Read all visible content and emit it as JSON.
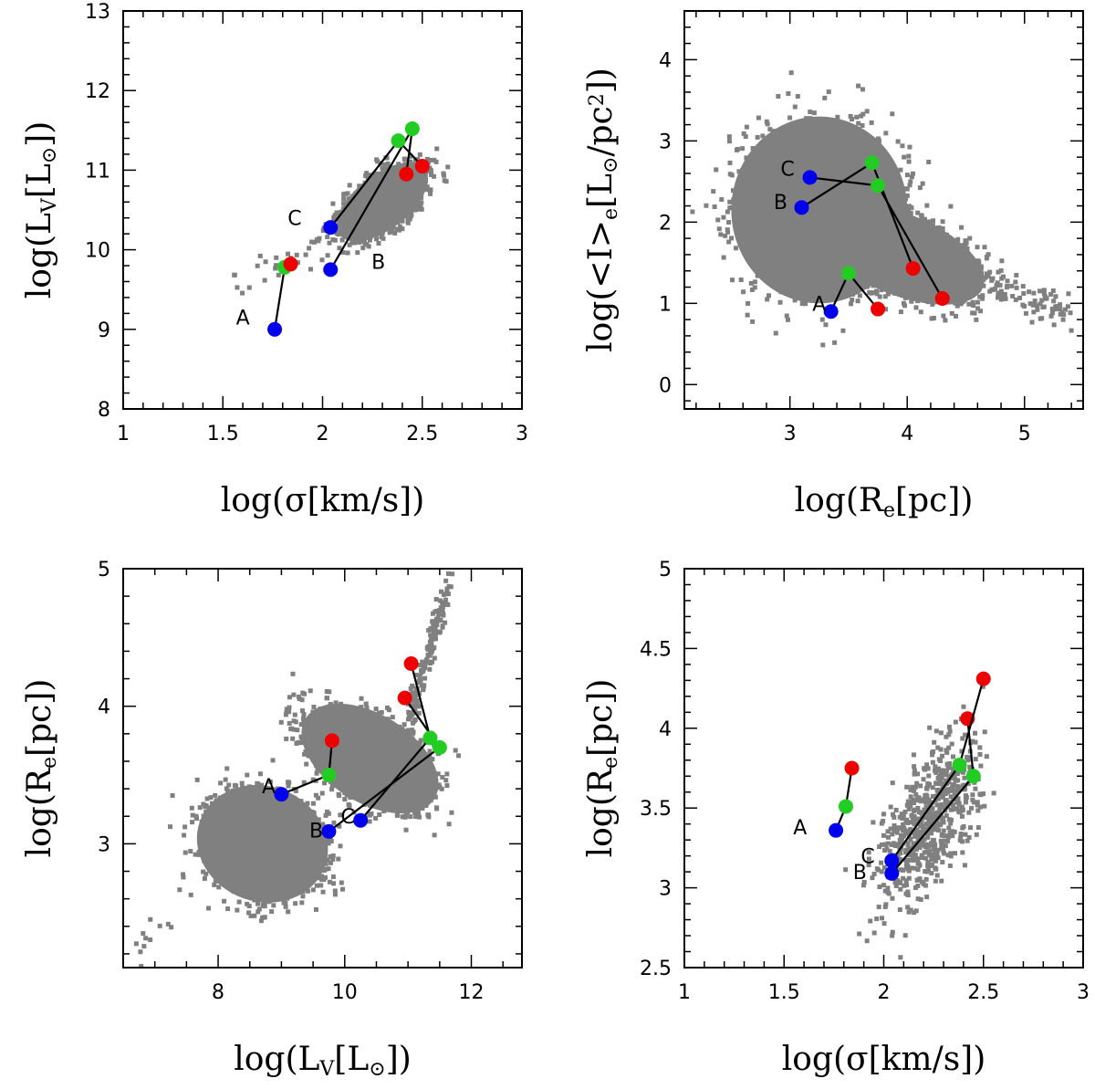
{
  "chart_data": [
    {
      "type": "scatter",
      "panel": "top-left",
      "xlabel": "log(σ[km/s])",
      "ylabel": "log(L_V[L_⊙])",
      "xlim": [
        1,
        3
      ],
      "ylim": [
        8,
        13
      ],
      "xticks": [
        1,
        1.5,
        2,
        2.5,
        3
      ],
      "yticks": [
        8,
        9,
        10,
        11,
        12,
        13
      ],
      "xtick_labels": [
        "1",
        "1.5",
        "2",
        "2.5",
        "3"
      ],
      "ytick_labels": [
        "8",
        "9",
        "10",
        "11",
        "12",
        "13"
      ],
      "xminor": 0.1,
      "yminor": 0.2,
      "point_colors": {
        "blue": "#0000ee",
        "green": "#22cc22",
        "red": "#ee0000",
        "cloud": "#808080"
      },
      "tracks": [
        {
          "name": "A",
          "points": [
            [
              1.76,
              9.0
            ],
            [
              1.81,
              9.78
            ],
            [
              1.84,
              9.82
            ]
          ],
          "colors": [
            "blue",
            "green",
            "red"
          ],
          "label_at": [
            1.6,
            9.15
          ]
        },
        {
          "name": "B",
          "points": [
            [
              2.04,
              9.75
            ],
            [
              2.45,
              11.52
            ],
            [
              2.42,
              10.95
            ]
          ],
          "colors": [
            "blue",
            "green",
            "red"
          ],
          "label_at": [
            2.28,
            9.85
          ]
        },
        {
          "name": "C",
          "points": [
            [
              2.04,
              10.28
            ],
            [
              2.38,
              11.37
            ],
            [
              2.5,
              11.05
            ]
          ],
          "colors": [
            "blue",
            "green",
            "red"
          ],
          "label_at": [
            1.86,
            10.4
          ]
        }
      ],
      "clouds": [
        {
          "center": [
            2.3,
            10.6
          ],
          "semi_axes": [
            0.27,
            0.34
          ],
          "angle_deg": -38
        }
      ]
    },
    {
      "type": "scatter",
      "panel": "top-right",
      "xlabel": "log(R_e[pc])",
      "ylabel": "log(<I>_e[L_⊙/pc²])",
      "xlim": [
        2.1,
        5.5
      ],
      "ylim": [
        -0.3,
        4.6
      ],
      "xticks": [
        3,
        4,
        5
      ],
      "yticks": [
        0,
        1,
        2,
        3,
        4
      ],
      "xtick_labels": [
        "3",
        "4",
        "5"
      ],
      "ytick_labels": [
        "0",
        "1",
        "2",
        "3",
        "4"
      ],
      "xminor": 0.2,
      "yminor": 0.2,
      "tracks": [
        {
          "name": "A",
          "points": [
            [
              3.35,
              0.9
            ],
            [
              3.5,
              1.37
            ],
            [
              3.75,
              0.93
            ]
          ],
          "colors": [
            "blue",
            "green",
            "red"
          ],
          "label_at": [
            3.25,
            1.0
          ]
        },
        {
          "name": "B",
          "points": [
            [
              3.1,
              2.18
            ],
            [
              3.7,
              2.73
            ],
            [
              4.05,
              1.43
            ]
          ],
          "colors": [
            "blue",
            "green",
            "red"
          ],
          "label_at": [
            2.92,
            2.25
          ]
        },
        {
          "name": "C",
          "points": [
            [
              3.17,
              2.55
            ],
            [
              3.75,
              2.45
            ],
            [
              4.3,
              1.06
            ]
          ],
          "colors": [
            "blue",
            "green",
            "red"
          ],
          "label_at": [
            2.98,
            2.66
          ]
        }
      ],
      "clouds": [
        {
          "center": [
            3.25,
            2.15
          ],
          "semi_axes": [
            0.75,
            1.15
          ],
          "angle_deg": 0
        },
        {
          "center": [
            3.95,
            1.6
          ],
          "semi_axes": [
            0.75,
            0.5
          ],
          "angle_deg": 22
        }
      ]
    },
    {
      "type": "scatter",
      "panel": "bottom-left",
      "xlabel": "log(L_V[L_⊙])",
      "ylabel": "log(R_e[pc])",
      "xlim": [
        6.5,
        12.8
      ],
      "ylim": [
        2.1,
        5.0
      ],
      "xticks": [
        8,
        10,
        12
      ],
      "yticks": [
        3,
        4,
        5
      ],
      "xtick_labels": [
        "8",
        "10",
        "12"
      ],
      "ytick_labels": [
        "3",
        "4",
        "5"
      ],
      "xminor": 0.5,
      "yminor": 0.2,
      "tracks": [
        {
          "name": "A",
          "points": [
            [
              9.0,
              3.36
            ],
            [
              9.75,
              3.5
            ],
            [
              9.8,
              3.75
            ]
          ],
          "colors": [
            "blue",
            "green",
            "red"
          ],
          "label_at": [
            8.8,
            3.42
          ]
        },
        {
          "name": "B",
          "points": [
            [
              9.75,
              3.09
            ],
            [
              11.5,
              3.7
            ],
            [
              10.95,
              4.06
            ]
          ],
          "colors": [
            "blue",
            "green",
            "red"
          ],
          "label_at": [
            9.55,
            3.1
          ]
        },
        {
          "name": "C",
          "points": [
            [
              10.25,
              3.17
            ],
            [
              11.35,
              3.77
            ],
            [
              11.05,
              4.31
            ]
          ],
          "colors": [
            "blue",
            "green",
            "red"
          ],
          "label_at": [
            10.05,
            3.2
          ]
        }
      ],
      "clouds": [
        {
          "center": [
            8.7,
            3.0
          ],
          "semi_axes": [
            1.05,
            0.42
          ],
          "angle_deg": 20
        },
        {
          "center": [
            10.4,
            3.62
          ],
          "semi_axes": [
            1.2,
            0.32
          ],
          "angle_deg": 32
        }
      ]
    },
    {
      "type": "scatter",
      "panel": "bottom-right",
      "xlabel": "log(σ[km/s])",
      "ylabel": "log(R_e[pc])",
      "xlim": [
        1,
        3
      ],
      "ylim": [
        2.5,
        5.0
      ],
      "xticks": [
        1,
        1.5,
        2,
        2.5,
        3
      ],
      "yticks": [
        2.5,
        3,
        3.5,
        4,
        4.5,
        5
      ],
      "xtick_labels": [
        "1",
        "1.5",
        "2",
        "2.5",
        "3"
      ],
      "ytick_labels": [
        "2.5",
        "3",
        "3.5",
        "4",
        "4.5",
        "5"
      ],
      "xminor": 0.1,
      "yminor": 0.1,
      "tracks": [
        {
          "name": "A",
          "points": [
            [
              1.76,
              3.36
            ],
            [
              1.81,
              3.51
            ],
            [
              1.84,
              3.75
            ]
          ],
          "colors": [
            "blue",
            "green",
            "red"
          ],
          "label_at": [
            1.58,
            3.38
          ]
        },
        {
          "name": "B",
          "points": [
            [
              2.04,
              3.09
            ],
            [
              2.45,
              3.7
            ],
            [
              2.42,
              4.06
            ]
          ],
          "colors": [
            "blue",
            "green",
            "red"
          ],
          "label_at": [
            1.88,
            3.1
          ]
        },
        {
          "name": "C",
          "points": [
            [
              2.04,
              3.17
            ],
            [
              2.38,
              3.77
            ],
            [
              2.5,
              4.31
            ]
          ],
          "colors": [
            "blue",
            "green",
            "red"
          ],
          "label_at": [
            1.92,
            3.2
          ]
        }
      ],
      "clouds": []
    }
  ]
}
